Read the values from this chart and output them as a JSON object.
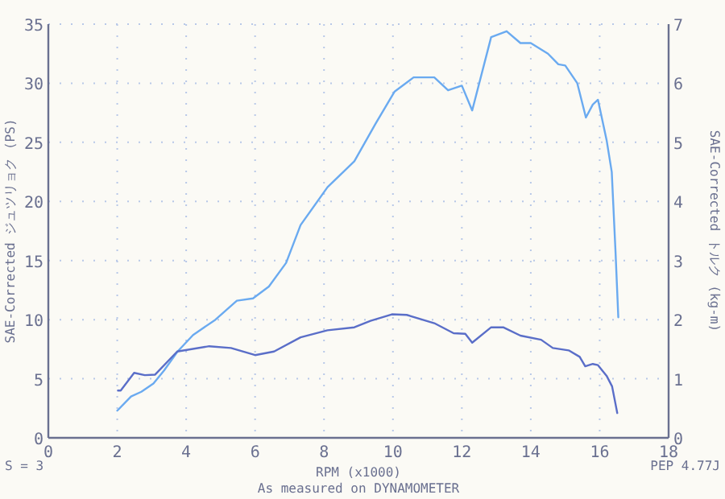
{
  "chart_data": {
    "type": "line",
    "xlabel": "RPM (x1000)",
    "ylabel": "SAE-Corrected ジュツリョク (PS)",
    "y2label": "SAE-Corrected トルク (kg-m)",
    "annotations": [
      "S = 3",
      "PEP 4.77J",
      "As measured on DYNAMOMETER"
    ],
    "xlim": [
      0,
      18
    ],
    "xticks": [
      0,
      2,
      4,
      6,
      8,
      10,
      12,
      14,
      16,
      18
    ],
    "ylim": [
      0,
      35
    ],
    "yticks": [
      0,
      5,
      10,
      15,
      20,
      25,
      30,
      35
    ],
    "y2lim": [
      0,
      7
    ],
    "y2ticks": [
      0,
      1,
      2,
      3,
      4,
      5,
      6,
      7
    ],
    "grid": true,
    "series": [
      {
        "color": "#6aaaf0",
        "x": [
          2.0,
          2.4,
          2.7,
          3.05,
          3.36,
          3.75,
          4.2,
          4.85,
          5.47,
          5.94,
          6.4,
          6.9,
          7.32,
          8.1,
          8.88,
          9.5,
          10.05,
          10.6,
          11.2,
          11.6,
          12.0,
          12.3,
          12.85,
          13.3,
          13.7,
          14.0,
          14.5,
          14.8,
          15.0,
          15.35,
          15.6,
          15.8,
          15.95,
          16.2,
          16.35,
          16.46,
          16.54
        ],
        "values": [
          2.3,
          3.5,
          3.9,
          4.6,
          5.7,
          7.3,
          8.7,
          10.0,
          11.6,
          11.8,
          12.8,
          14.8,
          18.0,
          21.2,
          23.4,
          26.6,
          29.3,
          30.5,
          30.5,
          29.4,
          29.8,
          27.7,
          33.9,
          34.4,
          33.4,
          33.4,
          32.5,
          31.6,
          31.5,
          30.0,
          27.1,
          28.2,
          28.6,
          25.2,
          22.5,
          15.7,
          10.2
        ]
      },
      {
        "color": "#5a6ec8",
        "axis": "y2",
        "x": [
          2.02,
          2.1,
          2.49,
          2.8,
          3.1,
          3.74,
          4.67,
          5.3,
          6.0,
          6.55,
          7.32,
          8.1,
          8.88,
          9.35,
          9.97,
          10.4,
          11.2,
          11.76,
          12.1,
          12.3,
          12.85,
          13.2,
          13.7,
          14.3,
          14.64,
          15.1,
          15.42,
          15.58,
          15.8,
          15.95,
          16.2,
          16.36,
          16.51
        ],
        "values": [
          0.8,
          0.8,
          1.1,
          1.06,
          1.07,
          1.46,
          1.55,
          1.52,
          1.4,
          1.46,
          1.7,
          1.82,
          1.87,
          1.98,
          2.09,
          2.08,
          1.94,
          1.77,
          1.76,
          1.61,
          1.87,
          1.87,
          1.73,
          1.66,
          1.52,
          1.48,
          1.37,
          1.21,
          1.25,
          1.23,
          1.05,
          0.87,
          0.42
        ]
      }
    ]
  }
}
